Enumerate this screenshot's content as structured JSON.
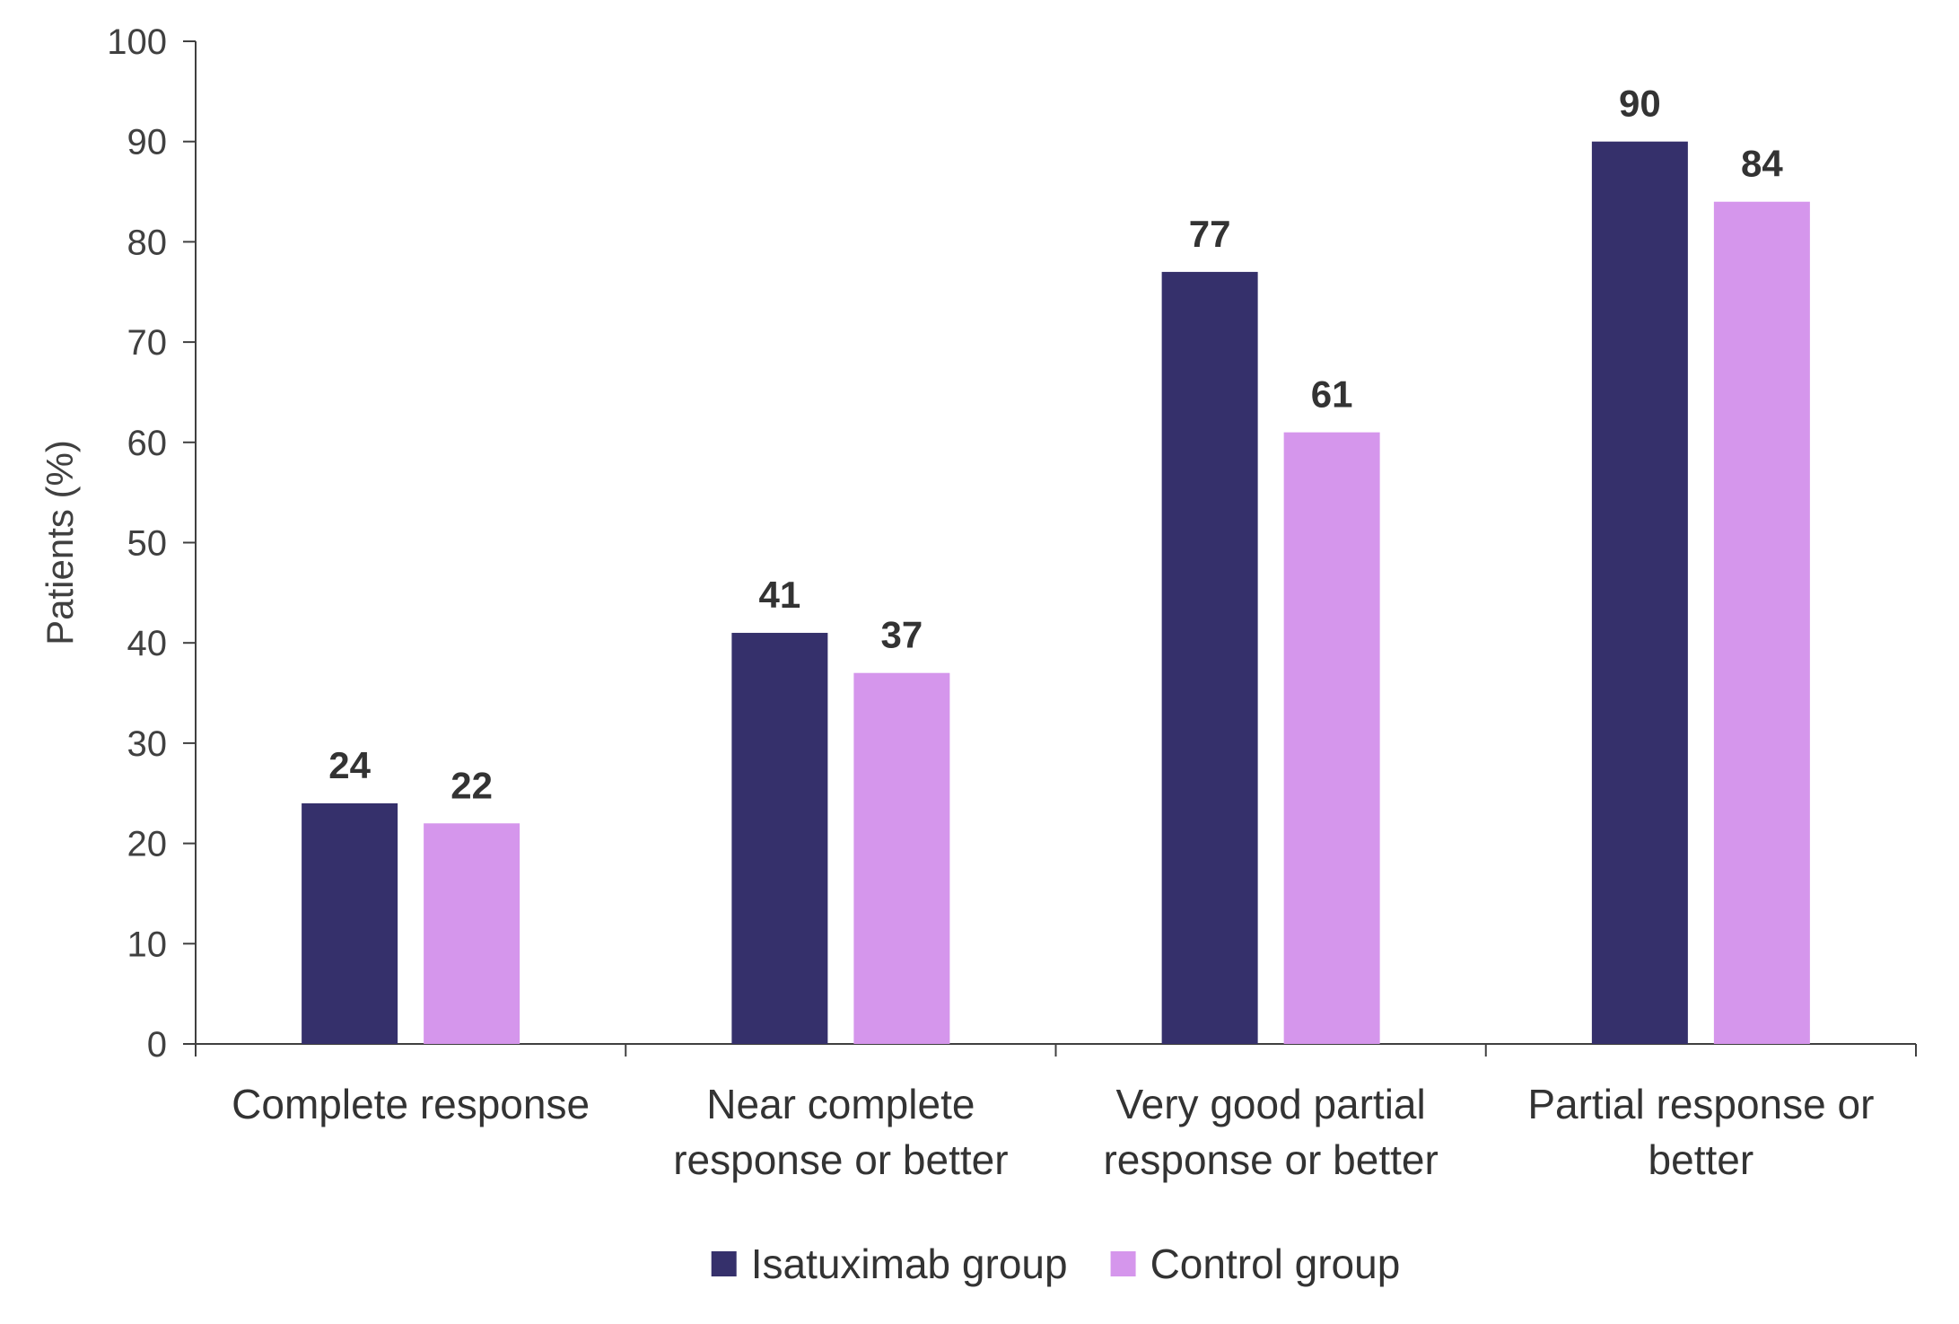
{
  "chart_data": {
    "type": "bar",
    "categories": [
      [
        "Complete response"
      ],
      [
        "Near complete",
        "response or better"
      ],
      [
        "Very good partial",
        "response or better"
      ],
      [
        "Partial response or",
        "better"
      ]
    ],
    "series": [
      {
        "name": "Isatuximab group",
        "values": [
          24,
          41,
          77,
          90
        ],
        "color": "#35306b"
      },
      {
        "name": "Control group",
        "values": [
          22,
          37,
          61,
          84
        ],
        "color": "#d596ec"
      }
    ],
    "xlabel": "",
    "ylabel": "Patients (%)",
    "ylim": [
      0,
      100
    ],
    "yticks": [
      0,
      10,
      20,
      30,
      40,
      50,
      60,
      70,
      80,
      90,
      100
    ],
    "grid": false,
    "legend_position": "bottom-center",
    "axis_color": "#404040"
  }
}
